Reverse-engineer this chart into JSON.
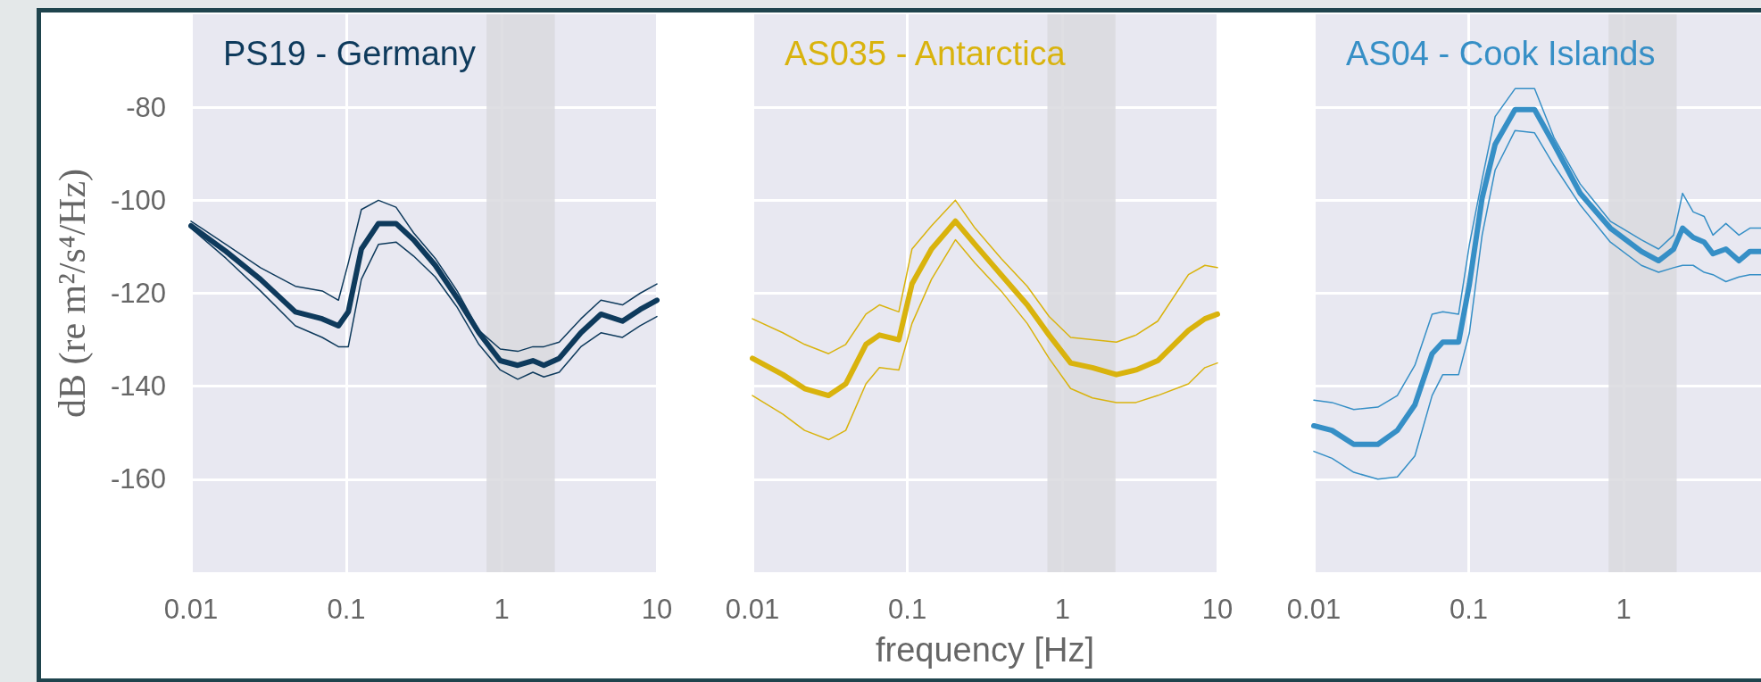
{
  "chart_data": [
    {
      "type": "line",
      "title": "PS19 - Germany",
      "ylabel": "dB (re m²/s⁴/Hz)",
      "log": "x",
      "grid": true,
      "x": [
        0.01,
        0.0168,
        0.028,
        0.047,
        0.07,
        0.089,
        0.103,
        0.125,
        0.161,
        0.209,
        0.271,
        0.374,
        0.517,
        0.714,
        0.98,
        1.27,
        1.59,
        1.87,
        2.35,
        3.24,
        4.36,
        6.0,
        7.8,
        10
      ],
      "series": [
        {
          "color": "#0e3a5c",
          "values": [
            -105.5,
            -111,
            -117,
            -124,
            -125.5,
            -127,
            -124,
            -110.5,
            -105,
            -105,
            -108.5,
            -114,
            -121,
            -128.5,
            -134.5,
            -135.5,
            -134.5,
            -135.5,
            -134,
            -128.5,
            -124.5,
            -126,
            -123.5,
            -121.5
          ]
        },
        {
          "color": "#0e3a5c",
          "values": [
            -106,
            -112.5,
            -119.5,
            -127,
            -129.5,
            -131.5,
            -131.5,
            -117,
            -109.5,
            -109,
            -112,
            -116.5,
            -123,
            -131,
            -136.5,
            -138.5,
            -137,
            -138,
            -137,
            -131.5,
            -128.5,
            -129.5,
            -127,
            -125
          ]
        },
        {
          "color": "#0e3a5c",
          "values": [
            -104.5,
            -109.5,
            -114.5,
            -118.5,
            -119.5,
            -121.5,
            -113.5,
            -102,
            -100,
            -101.5,
            -107,
            -112.5,
            -119.5,
            -128,
            -132,
            -132.5,
            -131.5,
            -131.5,
            -130.5,
            -125.5,
            -121.5,
            -122.5,
            -120,
            -118
          ]
        }
      ],
      "xlim": [
        0.01,
        10
      ],
      "xticks": [
        0.01,
        0.1,
        1,
        10
      ],
      "ylim": [
        -180,
        -60
      ],
      "yticks": [
        -160,
        -140,
        -120,
        -100,
        -80
      ],
      "bands": [
        {
          "axis": "x",
          "from": 0.8,
          "to": 2.2,
          "color": "#d9d9de"
        }
      ]
    },
    {
      "type": "line",
      "title": "AS035 - Antarctica",
      "xlabel": "frequency [Hz]",
      "log": "x",
      "grid": true,
      "tick_labels": "x",
      "x": [
        0.01,
        0.0157,
        0.0217,
        0.031,
        0.04,
        0.054,
        0.066,
        0.088,
        0.107,
        0.143,
        0.204,
        0.273,
        0.402,
        0.593,
        0.82,
        1.13,
        1.56,
        2.23,
        2.98,
        4.12,
        6.5,
        8.3,
        10
      ],
      "series": [
        {
          "color": "#d9b30d",
          "values": [
            -134,
            -137.5,
            -140.5,
            -142,
            -139.5,
            -131,
            -129,
            -130,
            -118,
            -110.5,
            -104.5,
            -109.5,
            -116,
            -122.5,
            -129,
            -135,
            -136,
            -137.5,
            -136.5,
            -134.5,
            -128,
            -125.5,
            -124.5
          ]
        },
        {
          "color": "#d9b30d",
          "values": [
            -142,
            -146,
            -149.5,
            -151.5,
            -149.5,
            -139.5,
            -136,
            -136.5,
            -126.5,
            -117,
            -108.5,
            -113.5,
            -119.5,
            -126.5,
            -134,
            -140.5,
            -142.5,
            -143.5,
            -143.5,
            -142,
            -139.5,
            -136,
            -135
          ]
        },
        {
          "color": "#d9b30d",
          "values": [
            -125.5,
            -128.5,
            -131,
            -133,
            -131,
            -124.5,
            -122.5,
            -124,
            -110.5,
            -105.5,
            -100,
            -106,
            -112.5,
            -118.5,
            -125,
            -129.5,
            -130,
            -130.5,
            -129,
            -126,
            -116,
            -114,
            -114.5
          ]
        }
      ],
      "xlim": [
        0.01,
        10
      ],
      "xticks": [
        0.01,
        0.1,
        1,
        10
      ],
      "ylim": [
        -180,
        -60
      ],
      "yticks": [
        -160,
        -140,
        -120,
        -100,
        -80
      ],
      "bands": [
        {
          "axis": "x",
          "from": 0.8,
          "to": 2.2,
          "color": "#d9d9de"
        }
      ]
    },
    {
      "type": "line",
      "title": "AS04 - Cook Islands",
      "log": "x",
      "grid": true,
      "tick_labels": "x",
      "x": [
        0.01,
        0.0131,
        0.0181,
        0.0259,
        0.0346,
        0.0449,
        0.058,
        0.068,
        0.086,
        0.101,
        0.122,
        0.148,
        0.199,
        0.266,
        0.355,
        0.524,
        0.82,
        1.3,
        1.68,
        2.1,
        2.4,
        2.81,
        3.31,
        3.77,
        4.57,
        5.55,
        6.53,
        7.7
      ],
      "series": [
        {
          "color": "#368fc6",
          "values": [
            -148.5,
            -149.5,
            -152.5,
            -152.5,
            -149.5,
            -144,
            -133,
            -130.5,
            -130.5,
            -118,
            -99.5,
            -88,
            -80.5,
            -80.5,
            -88,
            -98.5,
            -106,
            -111,
            -113,
            -110.5,
            -106,
            -108,
            -109,
            -111.5,
            -110.5,
            -113,
            -111,
            -111
          ]
        },
        {
          "color": "#368fc6",
          "values": [
            -154,
            -155.5,
            -158.5,
            -160,
            -159.5,
            -155,
            -142,
            -137.5,
            -137.5,
            -128.5,
            -107.5,
            -93.5,
            -85,
            -85.5,
            -92.5,
            -101,
            -109,
            -114,
            -115.5,
            -114.5,
            -114,
            -114,
            -115.5,
            -116,
            -117.5,
            -116.5,
            -116,
            -116
          ]
        },
        {
          "color": "#368fc6",
          "values": [
            -143,
            -143.5,
            -145,
            -144.5,
            -142,
            -135.5,
            -124.5,
            -124,
            -124.5,
            -109.5,
            -95.5,
            -82,
            -76,
            -76,
            -86.5,
            -96.5,
            -104.5,
            -108.5,
            -110.5,
            -107.5,
            -98.5,
            -102.5,
            -103.5,
            -107.5,
            -105,
            -107.5,
            -106,
            -106
          ]
        }
      ],
      "xlim": [
        0.01,
        7.7
      ],
      "xticks": [
        0.01,
        0.1,
        1
      ],
      "ylim": [
        -180,
        -60
      ],
      "yticks": [
        -160,
        -140,
        -120,
        -100,
        -80
      ],
      "bands": [
        {
          "axis": "x",
          "from": 0.8,
          "to": 2.2,
          "color": "#d9d9de"
        }
      ]
    }
  ]
}
